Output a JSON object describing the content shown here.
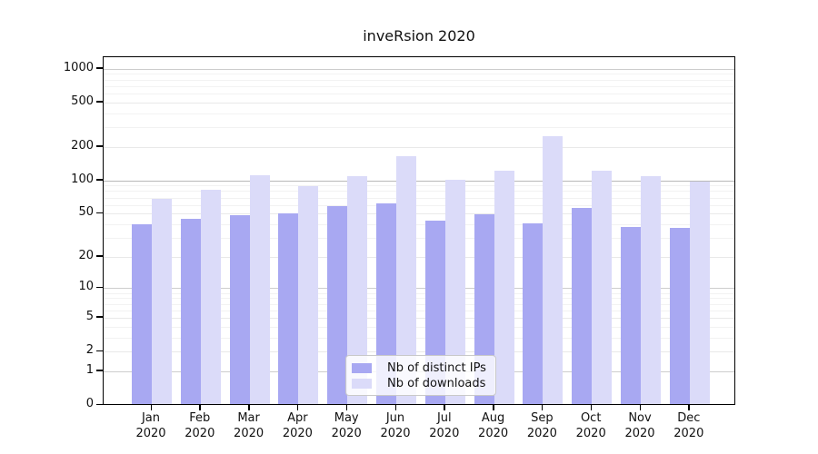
{
  "chart_data": {
    "type": "bar",
    "title": "inveRsion 2020",
    "categories": [
      "Jan",
      "Feb",
      "Mar",
      "Apr",
      "May",
      "Jun",
      "Jul",
      "Aug",
      "Sep",
      "Oct",
      "Nov",
      "Dec"
    ],
    "year_label": "2020",
    "series": [
      {
        "name": "Nb of distinct IPs",
        "color": "#a8a8f2",
        "values": [
          40,
          45,
          48,
          50,
          58,
          62,
          43,
          49,
          41,
          56,
          38,
          37
        ]
      },
      {
        "name": "Nb of downloads",
        "color": "#dbdbf9",
        "values": [
          68,
          82,
          111,
          89,
          110,
          165,
          101,
          122,
          250,
          122,
          110,
          98
        ]
      }
    ],
    "y_axis": {
      "scale": "log10(value+1)",
      "ticks": [
        0,
        1,
        2,
        5,
        10,
        20,
        50,
        100,
        200,
        500,
        1000
      ],
      "ylim": [
        0,
        1000
      ]
    },
    "x_axis": {
      "tick_position": "center-of-month-group"
    },
    "legend": {
      "entries": [
        "Nb of distinct IPs",
        "Nb of downloads"
      ],
      "position": "inside-bottom-center"
    },
    "grid": true
  }
}
